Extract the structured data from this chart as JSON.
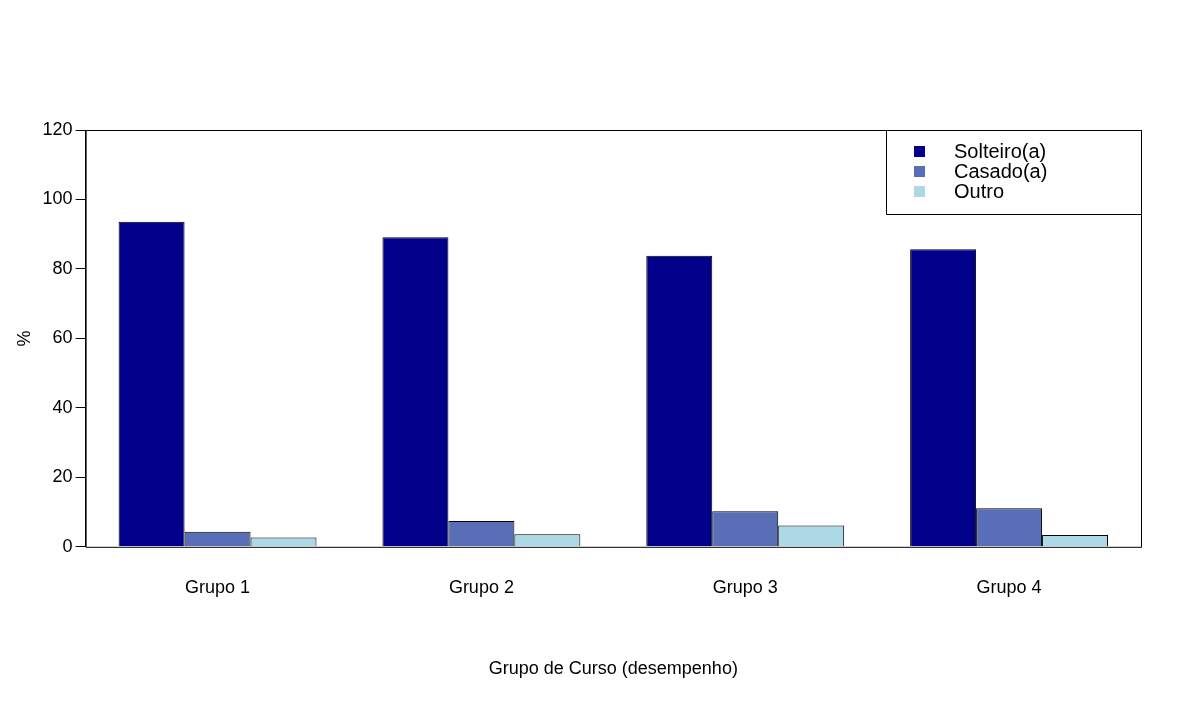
{
  "chart_data": {
    "type": "bar",
    "xlabel": "Grupo de Curso (desempenho)",
    "ylabel": "%",
    "categories": [
      "Grupo 1",
      "Grupo 2",
      "Grupo 3",
      "Grupo 4"
    ],
    "series": [
      {
        "name": "Solteiro(a)",
        "color": "#00008b",
        "values": [
          93.6,
          89.1,
          83.8,
          85.7
        ]
      },
      {
        "name": "Casado(a)",
        "color": "#5a6eb8",
        "values": [
          4.3,
          7.4,
          10.2,
          11.1
        ]
      },
      {
        "name": "Outro",
        "color": "#add8e6",
        "values": [
          2.7,
          3.6,
          6.1,
          3.4
        ]
      }
    ],
    "ylim": [
      0,
      120
    ],
    "yticks": [
      0,
      20,
      40,
      60,
      80,
      100,
      120
    ],
    "grid": false,
    "legend": "top right"
  }
}
